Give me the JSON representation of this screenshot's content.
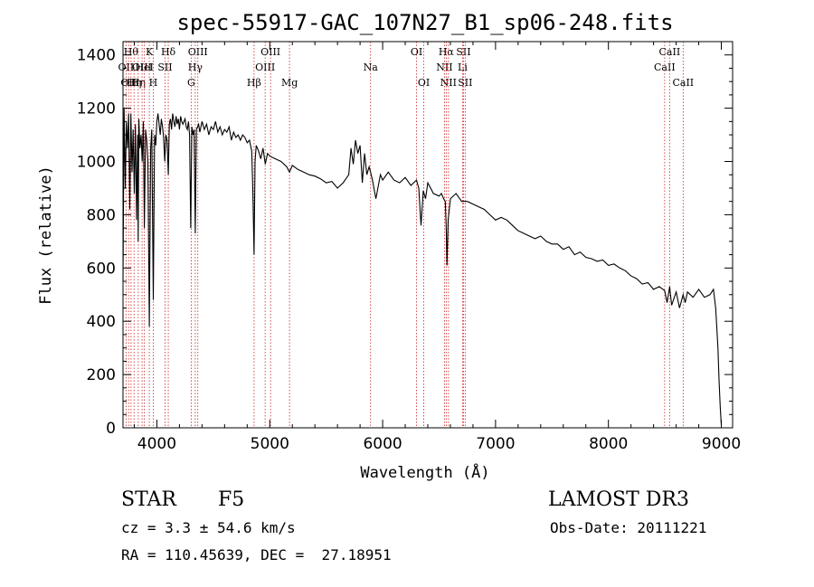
{
  "chart_data": {
    "type": "line",
    "title": "spec-55917-GAC_107N27_B1_sp06-248.fits",
    "xlabel": "Wavelength (Å)",
    "ylabel": "Flux (relative)",
    "xlim": [
      3700,
      9100
    ],
    "ylim": [
      0,
      1450
    ],
    "x_ticks": [
      4000,
      5000,
      6000,
      7000,
      8000,
      9000
    ],
    "y_ticks": [
      0,
      200,
      400,
      600,
      800,
      1000,
      1200,
      1400
    ],
    "grid": false,
    "series": [
      {
        "color": "#000000",
        "x": [
          3700,
          3710,
          3720,
          3730,
          3740,
          3750,
          3760,
          3770,
          3780,
          3790,
          3800,
          3810,
          3820,
          3830,
          3835,
          3840,
          3850,
          3860,
          3870,
          3880,
          3889,
          3900,
          3910,
          3920,
          3933,
          3945,
          3955,
          3968,
          3980,
          3990,
          4000,
          4010,
          4020,
          4030,
          4040,
          4050,
          4060,
          4070,
          4080,
          4090,
          4101,
          4110,
          4120,
          4130,
          4140,
          4150,
          4160,
          4170,
          4180,
          4190,
          4200,
          4210,
          4220,
          4230,
          4240,
          4250,
          4260,
          4270,
          4280,
          4290,
          4300,
          4310,
          4320,
          4330,
          4340,
          4350,
          4360,
          4370,
          4380,
          4400,
          4420,
          4440,
          4460,
          4480,
          4500,
          4520,
          4540,
          4560,
          4580,
          4600,
          4620,
          4640,
          4660,
          4680,
          4700,
          4720,
          4740,
          4760,
          4780,
          4800,
          4820,
          4840,
          4850,
          4861,
          4870,
          4880,
          4900,
          4920,
          4940,
          4960,
          4980,
          5000,
          5050,
          5100,
          5150,
          5175,
          5200,
          5250,
          5300,
          5350,
          5400,
          5450,
          5500,
          5550,
          5600,
          5650,
          5700,
          5720,
          5740,
          5760,
          5780,
          5800,
          5820,
          5840,
          5860,
          5880,
          5893,
          5910,
          5940,
          5980,
          6000,
          6050,
          6100,
          6150,
          6200,
          6250,
          6300,
          6320,
          6340,
          6360,
          6380,
          6400,
          6450,
          6500,
          6520,
          6540,
          6555,
          6563,
          6570,
          6580,
          6600,
          6650,
          6700,
          6750,
          6800,
          6850,
          6900,
          6950,
          7000,
          7050,
          7100,
          7150,
          7200,
          7250,
          7300,
          7350,
          7400,
          7450,
          7500,
          7550,
          7600,
          7650,
          7700,
          7750,
          7800,
          7850,
          7900,
          7950,
          8000,
          8050,
          8100,
          8150,
          8200,
          8250,
          8300,
          8350,
          8400,
          8450,
          8498,
          8520,
          8542,
          8560,
          8600,
          8630,
          8662,
          8680,
          8700,
          8750,
          8800,
          8850,
          8900,
          8930,
          8950,
          8970,
          8980,
          8990,
          9000
        ],
        "values": [
          550,
          1200,
          900,
          1150,
          1050,
          1180,
          820,
          1180,
          960,
          1120,
          880,
          1140,
          780,
          1100,
          700,
          1160,
          1050,
          1100,
          1000,
          1150,
          750,
          1120,
          1080,
          1000,
          380,
          1050,
          1120,
          480,
          1100,
          1060,
          1150,
          1180,
          1140,
          1100,
          1160,
          1130,
          1090,
          1000,
          1100,
          1080,
          950,
          1140,
          1160,
          1120,
          1180,
          1150,
          1130,
          1170,
          1140,
          1160,
          1120,
          1170,
          1150,
          1140,
          1150,
          1160,
          1130,
          1120,
          1150,
          1100,
          750,
          1130,
          1100,
          1120,
          730,
          1120,
          1130,
          1140,
          1110,
          1150,
          1120,
          1140,
          1100,
          1130,
          1120,
          1150,
          1110,
          1130,
          1100,
          1120,
          1110,
          1130,
          1080,
          1110,
          1090,
          1100,
          1080,
          1100,
          1090,
          1070,
          1080,
          1040,
          900,
          650,
          1000,
          1060,
          1040,
          1010,
          1050,
          990,
          1030,
          1020,
          1010,
          1000,
          980,
          960,
          985,
          970,
          960,
          950,
          945,
          935,
          920,
          925,
          900,
          920,
          950,
          1050,
          990,
          1080,
          1030,
          1060,
          920,
          1030,
          950,
          980,
          960,
          930,
          860,
          950,
          930,
          960,
          930,
          920,
          940,
          910,
          930,
          900,
          760,
          890,
          860,
          920,
          880,
          870,
          880,
          860,
          850,
          760,
          610,
          780,
          860,
          880,
          850,
          850,
          840,
          830,
          820,
          800,
          780,
          790,
          780,
          760,
          740,
          730,
          720,
          710,
          720,
          700,
          690,
          690,
          670,
          680,
          650,
          660,
          640,
          635,
          625,
          630,
          610,
          615,
          600,
          590,
          570,
          560,
          540,
          545,
          520,
          530,
          515,
          470,
          530,
          460,
          510,
          450,
          500,
          470,
          510,
          490,
          520,
          490,
          500,
          520,
          450,
          300,
          180,
          80,
          10
        ]
      }
    ],
    "lines": [
      {
        "wl": 3727,
        "label": "OII",
        "row": 1
      },
      {
        "wl": 3750,
        "label": "OII",
        "row": 2
      },
      {
        "wl": 3771,
        "label": "Hθ",
        "row": 0
      },
      {
        "wl": 3798,
        "label": "Hη",
        "row": 2
      },
      {
        "wl": 3835,
        "label": "Hη",
        "row": 2
      },
      {
        "wl": 3869,
        "label": "OIII",
        "row": 1
      },
      {
        "wl": 3889,
        "label": "HeI",
        "row": 1
      },
      {
        "wl": 3933,
        "label": "K",
        "row": 0
      },
      {
        "wl": 3968,
        "label": "H",
        "row": 2
      },
      {
        "wl": 4072,
        "label": "SII",
        "row": 1
      },
      {
        "wl": 4101,
        "label": "Hδ",
        "row": 0
      },
      {
        "wl": 4304,
        "label": "G",
        "row": 2
      },
      {
        "wl": 4340,
        "label": "Hγ",
        "row": 1
      },
      {
        "wl": 4363,
        "label": "OIII",
        "row": 0
      },
      {
        "wl": 4861,
        "label": "Hβ",
        "row": 2
      },
      {
        "wl": 4959,
        "label": "OIII",
        "row": 1
      },
      {
        "wl": 5007,
        "label": "OIII",
        "row": 0
      },
      {
        "wl": 5175,
        "label": "Mg",
        "row": 2
      },
      {
        "wl": 5893,
        "label": "Na",
        "row": 1
      },
      {
        "wl": 6300,
        "label": "OI",
        "row": 0
      },
      {
        "wl": 6364,
        "label": "OI",
        "row": 2
      },
      {
        "wl": 6548,
        "label": "NII",
        "row": 1
      },
      {
        "wl": 6563,
        "label": "Hα",
        "row": 0
      },
      {
        "wl": 6583,
        "label": "NII",
        "row": 2
      },
      {
        "wl": 6708,
        "label": "Li",
        "row": 1
      },
      {
        "wl": 6716,
        "label": "SII",
        "row": 0
      },
      {
        "wl": 6731,
        "label": "SII",
        "row": 2
      },
      {
        "wl": 8498,
        "label": "CaII",
        "row": 1
      },
      {
        "wl": 8542,
        "label": "CaII",
        "row": 0
      },
      {
        "wl": 8662,
        "label": "CaII",
        "row": 2
      }
    ]
  },
  "info": {
    "class": "STAR",
    "subclass": "F5",
    "survey": "LAMOST DR3",
    "cz": "cz = 3.3 ± 54.6 km/s",
    "obs_date": "Obs-Date: 20111221",
    "coords": "RA = 110.45639, DEC =  27.18951"
  }
}
